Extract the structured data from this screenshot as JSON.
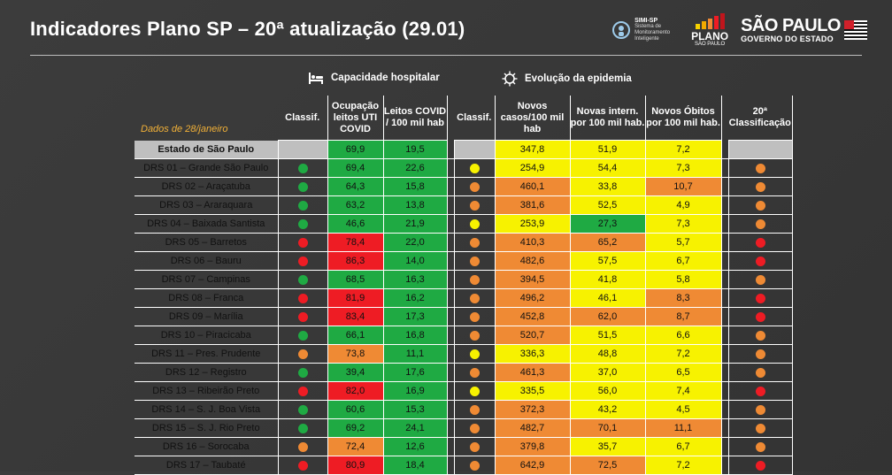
{
  "title": "Indicadores Plano SP – 20ª atualização (29.01)",
  "logos": {
    "simi": {
      "name": "SIMI-SP",
      "sub": "Sistema de Monitoramento Inteligente"
    },
    "plano": {
      "word": "PLANO",
      "sub": "SÃO PAULO"
    },
    "sp": {
      "main": "SÃO PAULO",
      "sub": "GOVERNO DO ESTADO"
    }
  },
  "sections": {
    "capacidade": "Capacidade hospitalar",
    "evolucao": "Evolução da epidemia"
  },
  "date_note": "Dados de 28/janeiro",
  "headers": {
    "classif1": "Classif.",
    "ocupacao": "Ocupação leitos UTI COVID",
    "leitos": "Leitos COVID / 100 mil hab",
    "classif2": "Classif.",
    "casos": "Novos casos/100 mil hab",
    "intern": "Novas intern. por 100 mil hab.",
    "obitos": "Novos Óbitos por 100 mil hab.",
    "final": "20ª Classificação"
  },
  "colors": {
    "green": "#1faa43",
    "yellow": "#f7f200",
    "orange": "#ef8a34",
    "red": "#ee1c24"
  },
  "state_row": {
    "name": "Estado de São Paulo",
    "ocupacao": "69,9",
    "leitos": "19,5",
    "casos": "347,8",
    "intern": "51,9",
    "obitos": "7,2"
  },
  "rows": [
    {
      "name": "DRS 01 – Grande São Paulo",
      "c1": "g",
      "ocupacao": "69,4",
      "oc_c": "g",
      "leitos": "22,6",
      "c2": "y",
      "casos": "254,9",
      "ca_c": "y",
      "intern": "54,4",
      "in_c": "y",
      "obitos": "7,3",
      "ob_c": "y",
      "final": "o"
    },
    {
      "name": "DRS 02 – Araçatuba",
      "c1": "g",
      "ocupacao": "64,3",
      "oc_c": "g",
      "leitos": "15,8",
      "c2": "o",
      "casos": "460,1",
      "ca_c": "o",
      "intern": "33,8",
      "in_c": "y",
      "obitos": "10,7",
      "ob_c": "o",
      "final": "o"
    },
    {
      "name": "DRS 03 – Araraquara",
      "c1": "g",
      "ocupacao": "63,2",
      "oc_c": "g",
      "leitos": "13,8",
      "c2": "o",
      "casos": "381,6",
      "ca_c": "o",
      "intern": "52,5",
      "in_c": "y",
      "obitos": "4,9",
      "ob_c": "y",
      "final": "o"
    },
    {
      "name": "DRS 04 – Baixada Santista",
      "c1": "g",
      "ocupacao": "46,6",
      "oc_c": "g",
      "leitos": "21,9",
      "c2": "y",
      "casos": "253,9",
      "ca_c": "y",
      "intern": "27,3",
      "in_c": "g",
      "obitos": "7,3",
      "ob_c": "y",
      "final": "o"
    },
    {
      "name": "DRS 05 – Barretos",
      "c1": "r",
      "ocupacao": "78,4",
      "oc_c": "r",
      "leitos": "22,0",
      "c2": "o",
      "casos": "410,3",
      "ca_c": "o",
      "intern": "65,2",
      "in_c": "o",
      "obitos": "5,7",
      "ob_c": "y",
      "final": "r"
    },
    {
      "name": "DRS 06 – Bauru",
      "c1": "r",
      "ocupacao": "86,3",
      "oc_c": "r",
      "leitos": "14,0",
      "c2": "o",
      "casos": "482,6",
      "ca_c": "o",
      "intern": "57,5",
      "in_c": "y",
      "obitos": "6,7",
      "ob_c": "y",
      "final": "r"
    },
    {
      "name": "DRS 07 – Campinas",
      "c1": "g",
      "ocupacao": "68,5",
      "oc_c": "g",
      "leitos": "16,3",
      "c2": "o",
      "casos": "394,5",
      "ca_c": "o",
      "intern": "41,8",
      "in_c": "y",
      "obitos": "5,8",
      "ob_c": "y",
      "final": "o"
    },
    {
      "name": "DRS 08 – Franca",
      "c1": "r",
      "ocupacao": "81,9",
      "oc_c": "r",
      "leitos": "16,2",
      "c2": "o",
      "casos": "496,2",
      "ca_c": "o",
      "intern": "46,1",
      "in_c": "y",
      "obitos": "8,3",
      "ob_c": "o",
      "final": "r"
    },
    {
      "name": "DRS 09 – Marília",
      "c1": "r",
      "ocupacao": "83,4",
      "oc_c": "r",
      "leitos": "17,3",
      "c2": "o",
      "casos": "452,8",
      "ca_c": "o",
      "intern": "62,0",
      "in_c": "o",
      "obitos": "8,7",
      "ob_c": "o",
      "final": "r"
    },
    {
      "name": "DRS 10 – Piracicaba",
      "c1": "g",
      "ocupacao": "66,1",
      "oc_c": "g",
      "leitos": "16,8",
      "c2": "o",
      "casos": "520,7",
      "ca_c": "o",
      "intern": "51,5",
      "in_c": "y",
      "obitos": "6,6",
      "ob_c": "y",
      "final": "o"
    },
    {
      "name": "DRS 11 – Pres. Prudente",
      "c1": "o",
      "ocupacao": "73,8",
      "oc_c": "o",
      "leitos": "11,1",
      "c2": "y",
      "casos": "336,3",
      "ca_c": "y",
      "intern": "48,8",
      "in_c": "y",
      "obitos": "7,2",
      "ob_c": "y",
      "final": "o"
    },
    {
      "name": "DRS 12 – Registro",
      "c1": "g",
      "ocupacao": "39,4",
      "oc_c": "g",
      "leitos": "17,6",
      "c2": "o",
      "casos": "461,3",
      "ca_c": "o",
      "intern": "37,0",
      "in_c": "y",
      "obitos": "6,5",
      "ob_c": "y",
      "final": "o"
    },
    {
      "name": "DRS 13 – Ribeirão Preto",
      "c1": "r",
      "ocupacao": "82,0",
      "oc_c": "r",
      "leitos": "16,9",
      "c2": "y",
      "casos": "335,5",
      "ca_c": "y",
      "intern": "56,0",
      "in_c": "y",
      "obitos": "7,4",
      "ob_c": "y",
      "final": "r"
    },
    {
      "name": "DRS 14 – S. J. Boa Vista",
      "c1": "g",
      "ocupacao": "60,6",
      "oc_c": "g",
      "leitos": "15,3",
      "c2": "o",
      "casos": "372,3",
      "ca_c": "o",
      "intern": "43,2",
      "in_c": "y",
      "obitos": "4,5",
      "ob_c": "y",
      "final": "o"
    },
    {
      "name": "DRS 15 – S. J. Rio Preto",
      "c1": "g",
      "ocupacao": "69,2",
      "oc_c": "g",
      "leitos": "24,1",
      "c2": "o",
      "casos": "482,7",
      "ca_c": "o",
      "intern": "70,1",
      "in_c": "o",
      "obitos": "11,1",
      "ob_c": "o",
      "final": "o"
    },
    {
      "name": "DRS 16 – Sorocaba",
      "c1": "o",
      "ocupacao": "72,4",
      "oc_c": "o",
      "leitos": "12,6",
      "c2": "o",
      "casos": "379,8",
      "ca_c": "o",
      "intern": "35,7",
      "in_c": "y",
      "obitos": "6,7",
      "ob_c": "y",
      "final": "o"
    },
    {
      "name": "DRS 17 – Taubaté",
      "c1": "r",
      "ocupacao": "80,9",
      "oc_c": "r",
      "leitos": "18,4",
      "c2": "o",
      "casos": "642,9",
      "ca_c": "o",
      "intern": "72,5",
      "in_c": "o",
      "obitos": "7,2",
      "ob_c": "y",
      "final": "r"
    }
  ]
}
